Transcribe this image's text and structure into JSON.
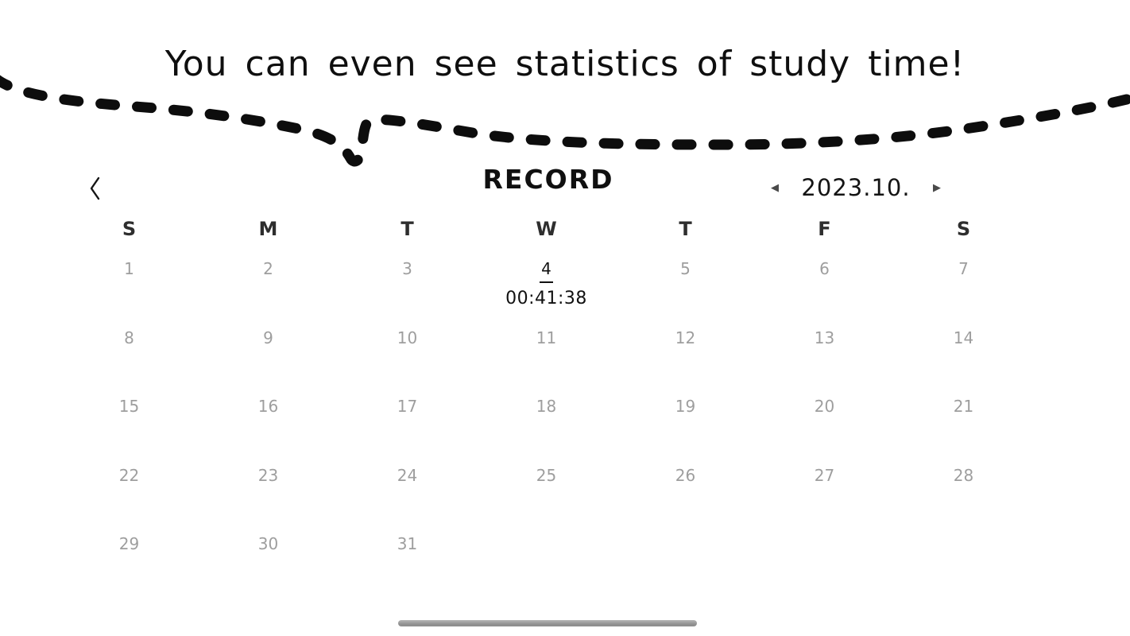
{
  "title": "You can even see statistics of study time!",
  "record": {
    "heading": "RECORD",
    "month_label": "2023.10."
  },
  "icons": {
    "back": "chevron-left",
    "prev_month": "◀",
    "next_month": "▶"
  },
  "calendar": {
    "day_headers": [
      "S",
      "M",
      "T",
      "W",
      "T",
      "F",
      "S"
    ],
    "weeks": [
      [
        "1",
        "2",
        "3",
        "4",
        "5",
        "6",
        "7"
      ],
      [
        "8",
        "9",
        "10",
        "11",
        "12",
        "13",
        "14"
      ],
      [
        "15",
        "16",
        "17",
        "18",
        "19",
        "20",
        "21"
      ],
      [
        "22",
        "23",
        "24",
        "25",
        "26",
        "27",
        "28"
      ],
      [
        "29",
        "30",
        "31",
        "",
        "",
        "",
        ""
      ]
    ],
    "selected_day": "4",
    "selected_day_time": "00:41:38"
  },
  "colors": {
    "text_primary": "#111111",
    "day_header": "#2e2e2e",
    "date_muted": "#9e9e9e",
    "handle_bar": "#8f8f8f",
    "curve_stroke": "#0d0d0d"
  }
}
